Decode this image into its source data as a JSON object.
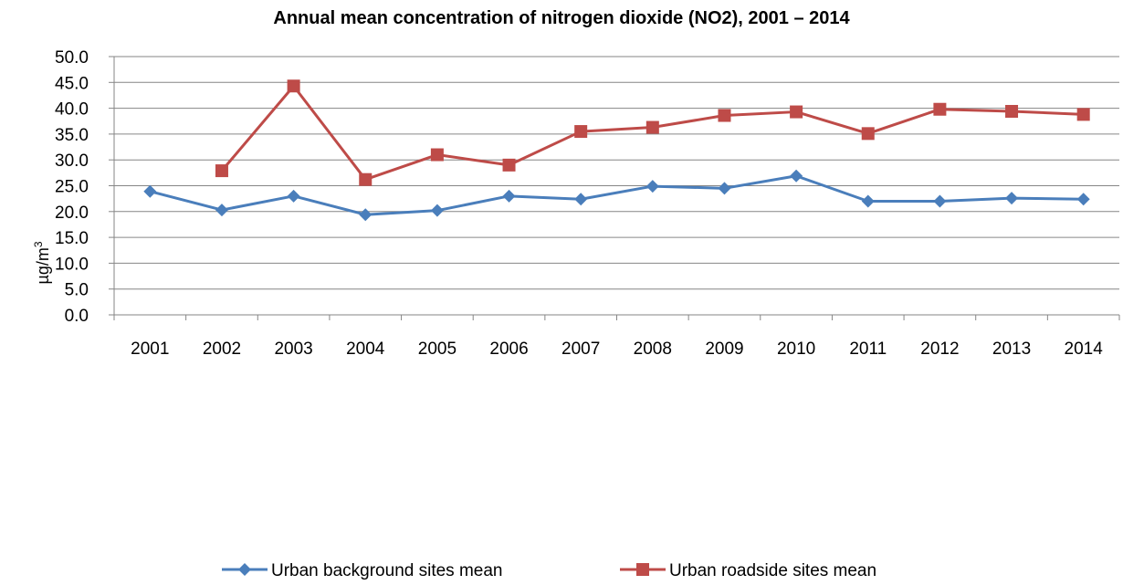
{
  "chart_data": {
    "type": "line",
    "title": "Annual mean concentration of nitrogen dioxide (NO2), 2001 – 2014",
    "xlabel": "",
    "ylabel": "µg/m",
    "ylabel_superscript": "3",
    "ylim": [
      0,
      50
    ],
    "ytick_step": 5,
    "yticks": [
      "0.0",
      "5.0",
      "10.0",
      "15.0",
      "20.0",
      "25.0",
      "30.0",
      "35.0",
      "40.0",
      "45.0",
      "50.0"
    ],
    "categories": [
      "2001",
      "2002",
      "2003",
      "2004",
      "2005",
      "2006",
      "2007",
      "2008",
      "2009",
      "2010",
      "2011",
      "2012",
      "2013",
      "2014"
    ],
    "grid": true,
    "legend_position": "bottom",
    "series": [
      {
        "name": "Urban background sites mean",
        "color": "#4a7ebb",
        "marker": "diamond",
        "values": [
          23.9,
          20.3,
          23.0,
          19.4,
          20.2,
          23.0,
          22.4,
          24.9,
          24.5,
          26.9,
          22.0,
          22.0,
          22.6,
          22.4
        ]
      },
      {
        "name": "Urban roadside sites mean",
        "color": "#be4b48",
        "marker": "square",
        "values": [
          null,
          27.9,
          44.3,
          26.2,
          31.0,
          29.0,
          35.5,
          36.3,
          38.6,
          39.3,
          35.1,
          39.8,
          39.4,
          38.8
        ]
      }
    ]
  }
}
